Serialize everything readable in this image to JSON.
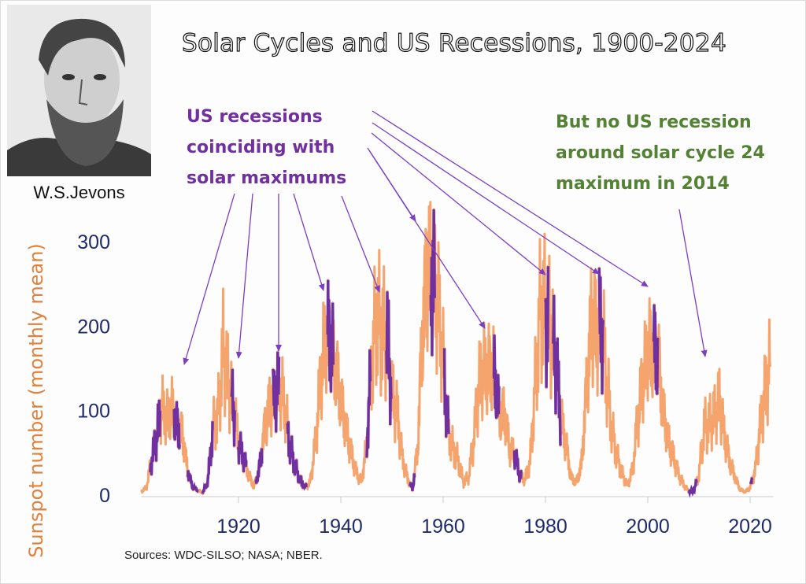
{
  "portrait_caption": "W.S.Jevons",
  "notes": {
    "purple_lines": [
      "US recessions",
      "coinciding with",
      "solar maximums"
    ],
    "green_lines": [
      "But no US recession",
      "around solar cycle 24",
      "maximum in 2014"
    ]
  },
  "sources": "Sources:  WDC-SILSO; NASA; NBER.",
  "colors": {
    "sunspot": "#f4a46c",
    "recession": "#7030a0",
    "arrow": "#7b3fc4",
    "green": "#548235",
    "axis_text": "#1f2a6b",
    "ylabel": "#e0813c"
  },
  "chart_data": {
    "type": "line",
    "title": "Solar Cycles and US Recessions, 1900-2024",
    "xlabel": "",
    "ylabel": "Sunspot number (monthly mean)",
    "xlim": [
      1900,
      2025
    ],
    "ylim": [
      0,
      330
    ],
    "xticks": [
      1920,
      1940,
      1960,
      1980,
      2000,
      2020
    ],
    "yticks": [
      0,
      100,
      200,
      300
    ],
    "xtick_labels": [
      "1920",
      "1940",
      "1960",
      "1980",
      "2000",
      "2020"
    ],
    "ytick_labels": [
      "0",
      "100",
      "200",
      "300"
    ],
    "series": [
      {
        "name": "Sunspot number",
        "x_start": 1901,
        "values": [
          4.6,
          8.5,
          40.8,
          70.1,
          105.5,
          90.1,
          102.8,
          80.9,
          73.2,
          30.9,
          9.5,
          6.0,
          2.4,
          16.1,
          79.0,
          95.0,
          173.6,
          134.6,
          105.7,
          62.7,
          43.5,
          23.7,
          9.7,
          27.9,
          74.0,
          106.5,
          114.7,
          129.7,
          108.2,
          59.4,
          35.1,
          18.6,
          9.2,
          14.6,
          60.2,
          132.8,
          190.6,
          182.6,
          148.0,
          113.0,
          79.2,
          50.8,
          27.1,
          16.1,
          55.3,
          154.3,
          214.7,
          193.0,
          190.7,
          118.9,
          98.3,
          45.0,
          20.1,
          6.6,
          54.2,
          200.7,
          269.3,
          261.7,
          225.1,
          159.0,
          76.4,
          53.4,
          39.9,
          15.0,
          22.0,
          66.8,
          132.9,
          150.0,
          149.4,
          148.0,
          94.4,
          97.6,
          54.1,
          49.2,
          22.5,
          18.4,
          39.3,
          131.0,
          220.1,
          218.9,
          198.9,
          162.4,
          91.0,
          60.5,
          20.6,
          14.8,
          33.9,
          123.0,
          211.1,
          191.8,
          203.3,
          133.0,
          76.1,
          44.9,
          25.1,
          11.6,
          28.9,
          88.3,
          136.3,
          173.9,
          170.4,
          163.6,
          99.3,
          65.3,
          45.8,
          24.7,
          12.6,
          4.2,
          4.8,
          24.9,
          80.8,
          84.5,
          94.0,
          113.3,
          69.8,
          39.8,
          21.7,
          7.0,
          3.6,
          8.8,
          29.6,
          83.2,
          125.5,
          154.0
        ]
      }
    ],
    "recessions": [
      [
        1902.75,
        1904.67
      ],
      [
        1907.4,
        1908.5
      ],
      [
        1910.1,
        1912.0
      ],
      [
        1913.0,
        1914.9
      ],
      [
        1918.7,
        1919.2
      ],
      [
        1920.0,
        1921.5
      ],
      [
        1923.4,
        1924.6
      ],
      [
        1926.8,
        1927.9
      ],
      [
        1929.6,
        1933.2
      ],
      [
        1937.4,
        1938.5
      ],
      [
        1945.1,
        1945.8
      ],
      [
        1948.9,
        1949.8
      ],
      [
        1953.5,
        1954.4
      ],
      [
        1957.6,
        1958.3
      ],
      [
        1960.3,
        1961.1
      ],
      [
        1969.9,
        1970.9
      ],
      [
        1973.9,
        1975.2
      ],
      [
        1980.0,
        1980.5
      ],
      [
        1981.5,
        1982.9
      ],
      [
        1990.5,
        1991.2
      ],
      [
        2001.2,
        2001.9
      ],
      [
        2007.9,
        2009.5
      ],
      [
        2020.1,
        2020.3
      ]
    ],
    "annotations": [
      "US recessions coinciding with solar maximums",
      "But no US recession around solar cycle 24 maximum in 2014"
    ]
  }
}
